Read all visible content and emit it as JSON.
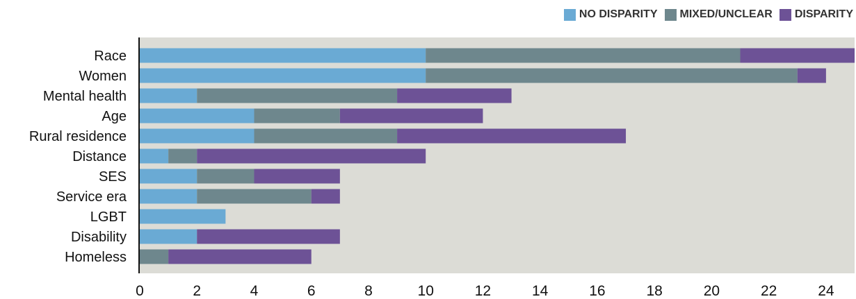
{
  "chart_data": {
    "type": "bar",
    "orientation": "horizontal",
    "stacked": true,
    "categories": [
      "Race",
      "Women",
      "Mental health",
      "Age",
      "Rural residence",
      "Distance",
      "SES",
      "Service era",
      "LGBT",
      "Disability",
      "Homeless"
    ],
    "series": [
      {
        "name": "NO DISPARITY",
        "color": "#6aaad4",
        "values": [
          10,
          10,
          2,
          4,
          4,
          1,
          2,
          2,
          3,
          2,
          0
        ]
      },
      {
        "name": "MIXED/UNCLEAR",
        "color": "#6e878d",
        "values": [
          11,
          13,
          7,
          3,
          5,
          1,
          2,
          4,
          0,
          0,
          1
        ]
      },
      {
        "name": "DISPARITY",
        "color": "#6d5296",
        "values": [
          4,
          1,
          4,
          5,
          8,
          8,
          3,
          1,
          0,
          5,
          5
        ]
      }
    ],
    "xticks": [
      "0",
      "2",
      "4",
      "6",
      "8",
      "10",
      "12",
      "14",
      "16",
      "18",
      "20",
      "22",
      "24"
    ],
    "xlim": [
      0,
      25
    ],
    "grid": false,
    "legend_position": "top-right",
    "plot_background": "#dcdcd6"
  }
}
